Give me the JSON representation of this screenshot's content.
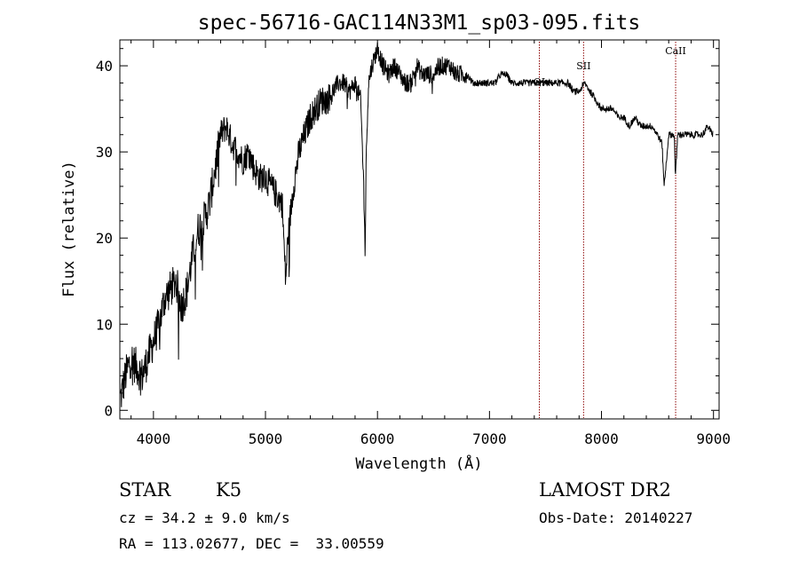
{
  "chart_data": {
    "type": "line",
    "title": "spec-56716-GAC114N33M1_sp03-095.fits",
    "xlabel": "Wavelength (Å)",
    "ylabel": "Flux (relative)",
    "xlim": [
      3700,
      9050
    ],
    "ylim": [
      -1,
      43
    ],
    "xticks": [
      4000,
      5000,
      6000,
      7000,
      8000,
      9000
    ],
    "yticks": [
      0,
      10,
      20,
      30,
      40
    ],
    "grid": false,
    "series": [
      {
        "x": [
          3700,
          3750,
          3800,
          3850,
          3900,
          3950,
          4000,
          4050,
          4100,
          4150,
          4200,
          4250,
          4300,
          4350,
          4400,
          4450,
          4500,
          4550,
          4600,
          4650,
          4700,
          4750,
          4800,
          4850,
          4900,
          4950,
          5000,
          5050,
          5100,
          5150,
          5180,
          5200,
          5250,
          5300,
          5350,
          5400,
          5450,
          5500,
          5550,
          5600,
          5650,
          5700,
          5750,
          5800,
          5850,
          5880,
          5890,
          5900,
          5920,
          5950,
          6000,
          6050,
          6100,
          6150,
          6200,
          6250,
          6300,
          6350,
          6400,
          6450,
          6500,
          6550,
          6600,
          6650,
          6700,
          6750,
          6800,
          6850,
          6900,
          6950,
          7000,
          7050,
          7100,
          7150,
          7200,
          7250,
          7300,
          7350,
          7400,
          7450,
          7500,
          7550,
          7600,
          7650,
          7700,
          7750,
          7800,
          7850,
          7900,
          7950,
          8000,
          8050,
          8100,
          8150,
          8200,
          8250,
          8300,
          8350,
          8400,
          8450,
          8500,
          8540,
          8560,
          8600,
          8650,
          8660,
          8680,
          8700,
          8750,
          8800,
          8850,
          8900,
          8950,
          8990,
          9000
        ],
        "y": [
          1,
          4,
          6,
          5,
          4,
          6,
          8,
          10,
          13,
          14,
          15,
          12,
          14,
          18,
          21,
          22,
          24,
          28,
          32,
          33,
          31,
          30,
          29,
          30,
          28,
          27,
          27,
          26,
          25,
          24,
          15,
          20,
          26,
          30,
          32,
          34,
          35,
          36,
          36,
          37,
          38,
          38,
          37,
          38,
          36,
          25,
          18,
          30,
          38,
          40,
          42,
          40,
          39,
          40,
          39,
          38,
          38,
          40,
          39,
          39,
          39,
          40,
          40,
          40,
          39,
          39,
          39,
          38,
          38,
          38,
          38,
          38,
          39,
          39,
          38,
          38,
          38,
          38,
          38,
          38,
          38,
          38,
          38,
          38,
          38,
          37,
          37,
          38,
          37,
          36,
          35,
          35,
          35,
          34,
          34,
          33,
          34,
          33,
          33,
          33,
          32,
          31,
          26,
          32,
          32,
          27,
          32,
          32,
          32,
          32,
          32,
          32,
          33,
          32,
          33
        ]
      }
    ],
    "lines": [
      {
        "x": 7445,
        "label": "OI"
      },
      {
        "x": 7840,
        "label": "SII"
      },
      {
        "x": 8662,
        "label": "CaII"
      }
    ]
  },
  "info": {
    "object_class": "STAR",
    "subclass": "K5",
    "redshift_line": "cz = 34.2 ± 9.0 km/s",
    "coords_line": "RA = 113.02677, DEC =  33.00559",
    "survey": "LAMOST DR2",
    "obs_date_line": "Obs-Date: 20140227"
  },
  "colors": {
    "spectrum": "#000000",
    "line_marker": "#8b0000"
  }
}
